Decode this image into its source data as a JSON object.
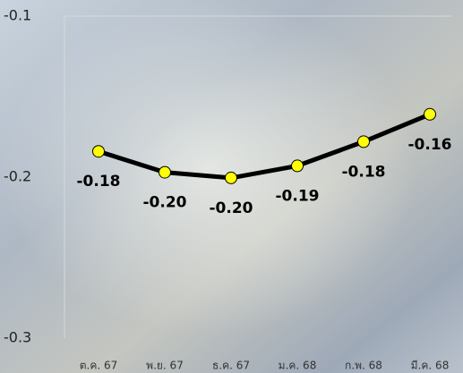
{
  "chart_data": {
    "type": "line",
    "categories": [
      "ต.ค. 67",
      "พ.ย. 67",
      "ธ.ค. 67",
      "ม.ค. 68",
      "ก.พ. 68",
      "มี.ค. 68"
    ],
    "series": [
      {
        "color": "#000000",
        "marker_color": "#ffff00",
        "values": [
          -0.184,
          -0.197,
          -0.2005,
          -0.193,
          -0.178,
          -0.161
        ],
        "value_labels": [
          "-0.18",
          "-0.20",
          "-0.20",
          "-0.19",
          "-0.18",
          "-0.16"
        ]
      }
    ],
    "ylim": [
      -0.3,
      -0.1
    ],
    "yticks": [
      -0.1,
      -0.2,
      -0.3
    ]
  }
}
